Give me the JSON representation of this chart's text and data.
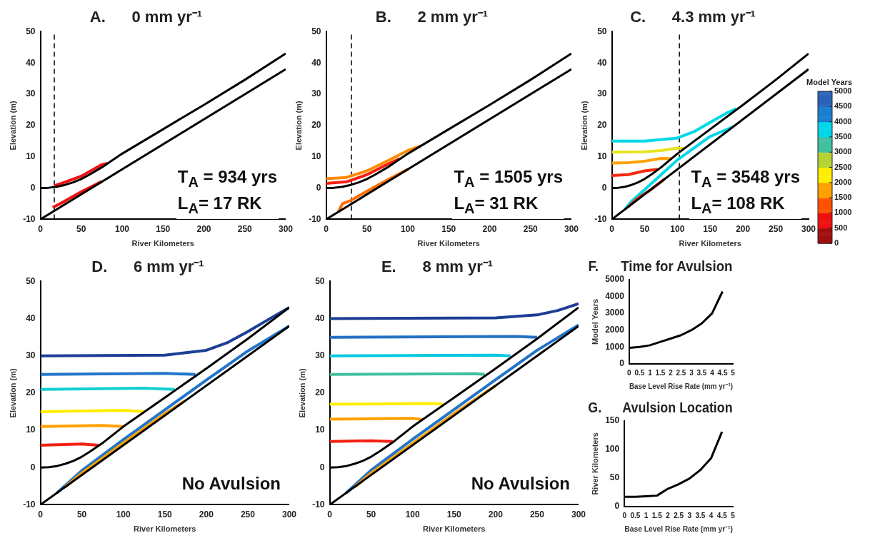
{
  "chart_data": [
    {
      "type": "line",
      "title": "A.      0 mm yr⁻¹",
      "xlabel": "River Kilometers",
      "ylabel": "Elevation (m)",
      "xlim": [
        0,
        300
      ],
      "xticks": [
        0,
        50,
        100,
        150,
        200,
        250,
        300
      ],
      "ylim": [
        -10,
        50
      ],
      "yticks": [
        -10,
        0,
        10,
        20,
        30,
        40,
        50
      ],
      "grid": false,
      "legend": false,
      "marker": "none",
      "annotations": [
        "T$_{A}$ = 934 yrs",
        "L$_{A}$= 17 RK"
      ],
      "ref_lines": [
        {
          "axis": "x",
          "value": 17,
          "color": "#000000",
          "line_style": "dashed"
        }
      ],
      "series": [
        {
          "color": "#000000",
          "x": [
            0,
            10,
            20,
            30,
            40,
            50,
            60,
            75,
            100,
            150,
            200,
            250,
            300
          ],
          "values": [
            0,
            0.1,
            0.4,
            1,
            1.8,
            2.9,
            4.3,
            6.6,
            11,
            18.8,
            26.6,
            34.6,
            43
          ]
        },
        {
          "color": "#f01010",
          "x": [
            17,
            25,
            50,
            75,
            82
          ],
          "values": [
            0.8,
            1.4,
            3.8,
            7.5,
            7.9
          ]
        },
        {
          "color": "#000000",
          "x": [
            0,
            300
          ],
          "values": [
            -10,
            38
          ]
        },
        {
          "color": "#f01010",
          "x": [
            15,
            25,
            50,
            75
          ],
          "values": [
            -6.2,
            -4.9,
            -1.2,
            2.1
          ]
        }
      ]
    },
    {
      "type": "line",
      "title": "B.      2 mm yr⁻¹",
      "xlabel": "River Kilometers",
      "ylabel": "Elevation (m)",
      "xlim": [
        0,
        300
      ],
      "xticks": [
        0,
        50,
        100,
        150,
        200,
        250,
        300
      ],
      "ylim": [
        -10,
        50
      ],
      "yticks": [
        -10,
        0,
        10,
        20,
        30,
        40,
        50
      ],
      "grid": false,
      "legend": false,
      "marker": "none",
      "annotations": [
        "T$_{A}$ = 1505 yrs",
        "L$_{A}$= 31 RK"
      ],
      "ref_lines": [
        {
          "axis": "x",
          "value": 31,
          "color": "#000000",
          "line_style": "dashed"
        }
      ],
      "series": [
        {
          "color": "#000000",
          "x": [
            0,
            10,
            20,
            30,
            40,
            50,
            60,
            75,
            100,
            150,
            200,
            250,
            300
          ],
          "values": [
            0,
            0.1,
            0.4,
            1,
            1.8,
            2.9,
            4.3,
            6.6,
            11,
            18.8,
            26.6,
            34.6,
            43
          ]
        },
        {
          "color": "#f52010",
          "x": [
            0,
            25,
            50,
            75,
            90
          ],
          "values": [
            1.5,
            2,
            4.3,
            7.6,
            9.4
          ]
        },
        {
          "color": "#ff8a00",
          "x": [
            0,
            25,
            50,
            75,
            100,
            115
          ],
          "values": [
            3,
            3.4,
            5.5,
            8.7,
            12,
            13.4
          ]
        },
        {
          "color": "#000000",
          "x": [
            0,
            300
          ],
          "values": [
            -10,
            38
          ]
        },
        {
          "color": "#ff7000",
          "x": [
            15,
            20,
            30,
            50,
            75,
            100
          ],
          "values": [
            -7.6,
            -5,
            -4,
            -1,
            2.6,
            6
          ]
        }
      ]
    },
    {
      "type": "line",
      "title": "C.      4.3 mm yr⁻¹",
      "xlabel": "River Kilometers",
      "ylabel": "Elevation (m)",
      "xlim": [
        0,
        300
      ],
      "xticks": [
        0,
        50,
        100,
        150,
        200,
        250,
        300
      ],
      "ylim": [
        -10,
        50
      ],
      "yticks": [
        -10,
        0,
        10,
        20,
        30,
        40,
        50
      ],
      "grid": false,
      "legend": false,
      "marker": "none",
      "annotations": [
        "T$_{A}$ = 3548 yrs",
        "L$_{A}$= 108 RK"
      ],
      "ref_lines": [
        {
          "axis": "x",
          "value": 103,
          "color": "#000000",
          "line_style": "dashed"
        }
      ],
      "clabel": "Model Years",
      "clim": [
        0,
        5000
      ],
      "cticks": [
        0,
        500,
        1000,
        1500,
        2000,
        2500,
        3000,
        3500,
        4000,
        4500,
        5000
      ],
      "series": [
        {
          "color": "#000000",
          "x": [
            0,
            10,
            20,
            30,
            40,
            50,
            60,
            75,
            100,
            150,
            200,
            250,
            300
          ],
          "values": [
            0,
            0.1,
            0.4,
            1,
            1.8,
            2.9,
            4.3,
            6.6,
            11,
            18.8,
            26.6,
            34.6,
            43
          ]
        },
        {
          "color": "#f72810",
          "x": [
            0,
            25,
            50,
            70
          ],
          "values": [
            4,
            4.3,
            5.5,
            6
          ]
        },
        {
          "color": "#ffa000",
          "x": [
            0,
            25,
            50,
            75,
            90
          ],
          "values": [
            8,
            8.1,
            8.6,
            9.5,
            9.4
          ]
        },
        {
          "color": "#e8e420",
          "x": [
            0,
            50,
            75,
            100,
            110
          ],
          "values": [
            11.5,
            11.6,
            12,
            12.8,
            12.6
          ]
        },
        {
          "color": "#00d8e8",
          "x": [
            0,
            50,
            100,
            125,
            150,
            175,
            190
          ],
          "values": [
            15,
            15,
            16,
            18,
            21,
            24,
            25.4
          ]
        },
        {
          "color": "#000000",
          "x": [
            0,
            300
          ],
          "values": [
            -10,
            38
          ]
        },
        {
          "color": "#f72810",
          "x": [
            25,
            40,
            60,
            80
          ],
          "values": [
            -6,
            -3.2,
            -0.4,
            2.8
          ]
        },
        {
          "color": "#00d8e8",
          "x": [
            20,
            30,
            50,
            100,
            150,
            185
          ],
          "values": [
            -6.8,
            -4.2,
            -0.5,
            9,
            16.5,
            19.6
          ]
        }
      ]
    },
    {
      "type": "line",
      "title": "D.      6 mm yr⁻¹",
      "xlabel": "River Kilometers",
      "ylabel": "Elevation (m)",
      "xlim": [
        0,
        300
      ],
      "xticks": [
        0,
        50,
        100,
        150,
        200,
        250,
        300
      ],
      "ylim": [
        -10,
        50
      ],
      "yticks": [
        -10,
        0,
        10,
        20,
        30,
        40,
        50
      ],
      "grid": false,
      "legend": false,
      "marker": "none",
      "annotations": [
        "No Avulsion"
      ],
      "series": [
        {
          "color": "#000000",
          "x": [
            0,
            10,
            20,
            30,
            40,
            50,
            60,
            75,
            100,
            150,
            200,
            250,
            300
          ],
          "values": [
            0,
            0.1,
            0.4,
            1,
            1.8,
            2.9,
            4.3,
            6.6,
            11,
            18.8,
            26.6,
            34.6,
            43
          ]
        },
        {
          "color": "#f52010",
          "x": [
            0,
            50,
            70
          ],
          "values": [
            6,
            6.3,
            6
          ]
        },
        {
          "color": "#ffa000",
          "x": [
            0,
            75,
            100
          ],
          "values": [
            11,
            11.3,
            11
          ]
        },
        {
          "color": "#ffee00",
          "x": [
            0,
            100,
            125
          ],
          "values": [
            15,
            15.4,
            15
          ]
        },
        {
          "color": "#10cfd0",
          "x": [
            0,
            125,
            162
          ],
          "values": [
            21,
            21.3,
            21
          ]
        },
        {
          "color": "#2275c8",
          "x": [
            0,
            150,
            187
          ],
          "values": [
            25,
            25.3,
            25
          ]
        },
        {
          "color": "#1c3f94",
          "x": [
            0,
            150,
            200,
            225,
            250,
            275,
            300
          ],
          "values": [
            30,
            30.2,
            31.5,
            33.5,
            36.5,
            39.8,
            43
          ]
        },
        {
          "color": "#000000",
          "x": [
            0,
            300
          ],
          "values": [
            -10,
            38
          ]
        },
        {
          "color": "#ffa000",
          "x": [
            30,
            50,
            100,
            150,
            175
          ],
          "values": [
            -5.2,
            -1.5,
            6.6,
            14.5,
            18
          ]
        },
        {
          "color": "#2275c8",
          "x": [
            20,
            50,
            100,
            150,
            200,
            250,
            300
          ],
          "values": [
            -6.8,
            -0.8,
            7.5,
            15.5,
            23.5,
            31.3,
            38
          ]
        }
      ]
    },
    {
      "type": "line",
      "title": "E.      8 mm yr⁻¹",
      "xlabel": "River Kilometers",
      "ylabel": "Elevation (m)",
      "xlim": [
        0,
        300
      ],
      "xticks": [
        0,
        50,
        100,
        150,
        200,
        250,
        300
      ],
      "ylim": [
        -10,
        50
      ],
      "yticks": [
        -10,
        0,
        10,
        20,
        30,
        40,
        50
      ],
      "grid": false,
      "legend": false,
      "marker": "none",
      "annotations": [
        "No Avulsion"
      ],
      "series": [
        {
          "color": "#000000",
          "x": [
            0,
            10,
            20,
            30,
            40,
            50,
            60,
            75,
            100,
            150,
            200,
            250,
            300
          ],
          "values": [
            0,
            0.1,
            0.4,
            1,
            1.8,
            2.9,
            4.3,
            6.6,
            11,
            18.8,
            26.6,
            34.6,
            43
          ]
        },
        {
          "color": "#f52010",
          "x": [
            0,
            50,
            76
          ],
          "values": [
            7,
            7.2,
            7
          ]
        },
        {
          "color": "#ffa000",
          "x": [
            0,
            100,
            112
          ],
          "values": [
            13,
            13.2,
            12.9
          ]
        },
        {
          "color": "#ffee00",
          "x": [
            0,
            125,
            137
          ],
          "values": [
            17,
            17.2,
            17
          ]
        },
        {
          "color": "#40c0a0",
          "x": [
            0,
            175,
            187
          ],
          "values": [
            25,
            25.2,
            25
          ]
        },
        {
          "color": "#08c8e4",
          "x": [
            0,
            200,
            218
          ],
          "values": [
            30,
            30.2,
            30
          ]
        },
        {
          "color": "#2470c4",
          "x": [
            0,
            225,
            250
          ],
          "values": [
            35,
            35.2,
            35
          ]
        },
        {
          "color": "#1c3f94",
          "x": [
            0,
            200,
            250,
            275,
            300
          ],
          "values": [
            40,
            40.2,
            41,
            42.2,
            44
          ]
        },
        {
          "color": "#000000",
          "x": [
            0,
            300
          ],
          "values": [
            -10,
            38
          ]
        },
        {
          "color": "#ffa000",
          "x": [
            30,
            50,
            100,
            150,
            200
          ],
          "values": [
            -5.2,
            -1.5,
            6.5,
            14.5,
            22
          ]
        },
        {
          "color": "#2275c8",
          "x": [
            20,
            50,
            100,
            150,
            200,
            250,
            300
          ],
          "values": [
            -6.8,
            -0.7,
            7.6,
            15.6,
            23.6,
            31.5,
            38.3
          ]
        }
      ]
    },
    {
      "type": "line",
      "title": "F.      Time for Avulsion",
      "xlabel": "Base Level Rise Rate (mm yr⁻¹)",
      "ylabel": "Model Years",
      "xlim": [
        0,
        5
      ],
      "xticks": [
        0,
        0.5,
        1,
        1.5,
        2,
        2.5,
        3,
        3.5,
        4,
        4.5,
        5
      ],
      "ylim": [
        0,
        5000
      ],
      "yticks": [
        0,
        1000,
        2000,
        3000,
        4000,
        5000
      ],
      "grid": false,
      "legend": false,
      "marker": "none",
      "series": [
        {
          "color": "#000000",
          "x": [
            0,
            0.5,
            1,
            1.5,
            2,
            2.5,
            3,
            3.5,
            4,
            4.5
          ],
          "values": [
            950,
            1000,
            1100,
            1300,
            1500,
            1700,
            2000,
            2400,
            3000,
            4300
          ]
        }
      ]
    },
    {
      "type": "line",
      "title": "G.      Avulsion Location",
      "xlabel": "Base Level Rise Rate (mm yr⁻¹)",
      "ylabel": "River Kilometers",
      "xlim": [
        0,
        5
      ],
      "xticks": [
        0,
        0.5,
        1,
        1.5,
        2,
        2.5,
        3,
        3.5,
        4,
        4.5,
        5
      ],
      "ylim": [
        0,
        150
      ],
      "yticks": [
        0,
        50,
        100,
        150
      ],
      "grid": false,
      "legend": false,
      "marker": "none",
      "series": [
        {
          "color": "#000000",
          "x": [
            0,
            0.5,
            1,
            1.5,
            2,
            2.5,
            3,
            3.5,
            4,
            4.5
          ],
          "values": [
            17,
            17,
            18,
            19,
            31,
            39,
            49,
            64,
            85,
            131
          ]
        }
      ]
    }
  ]
}
